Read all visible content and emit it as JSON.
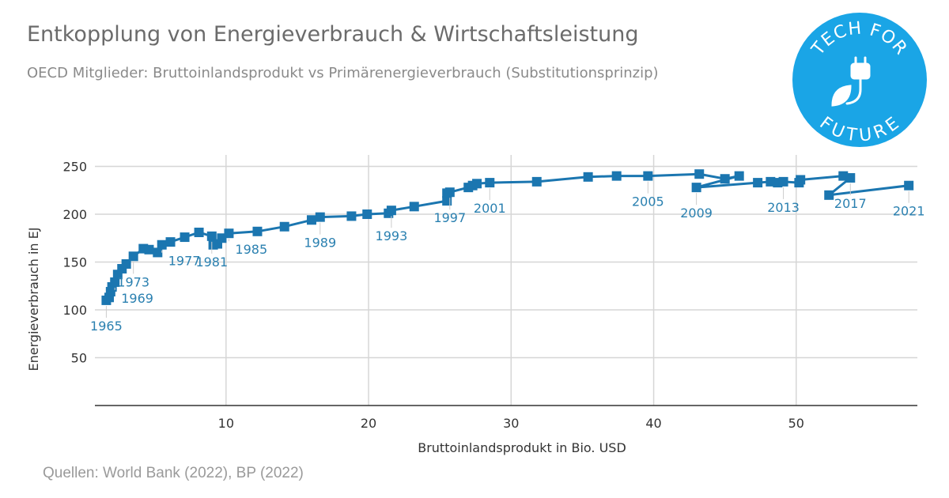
{
  "header": {
    "title": "Entkopplung von Energieverbrauch & Wirtschaftsleistung",
    "subtitle": "OECD Mitglieder: Bruttoinlandsprodukt vs Primärenergieverbrauch (Substitutionsprinzip)"
  },
  "logo": {
    "top_text": "TECH FOR",
    "bottom_text": "FUTURE",
    "icon": "plug-leaf-icon",
    "color": "#1aa5e6"
  },
  "source": "Quellen: World Bank (2022), BP (2022)",
  "colors": {
    "series": "#1b76b0",
    "label": "#2a80b0",
    "grid": "#d6d6d6",
    "axis": "#333333"
  },
  "chart_data": {
    "type": "scatter",
    "xlabel": "Bruttoinlandsprodukt in Bio. USD",
    "ylabel": "Energieverbrauch in EJ",
    "xlim": [
      0.8,
      58.5
    ],
    "ylim": [
      0,
      262
    ],
    "xticks": [
      10,
      20,
      30,
      40,
      50
    ],
    "yticks": [
      50,
      100,
      150,
      200,
      250
    ],
    "grid": true,
    "connected": true,
    "series": [
      {
        "points": [
          {
            "year": "1965",
            "x": 1.6,
            "y": 110
          },
          {
            "x": 1.8,
            "y": 113
          },
          {
            "x": 1.9,
            "y": 119
          },
          {
            "x": 2.0,
            "y": 124
          },
          {
            "year": "1969",
            "x": 2.2,
            "y": 129
          },
          {
            "x": 2.4,
            "y": 137
          },
          {
            "x": 2.7,
            "y": 143
          },
          {
            "x": 3.0,
            "y": 148
          },
          {
            "year": "1973",
            "x": 3.5,
            "y": 156
          },
          {
            "x": 4.2,
            "y": 164
          },
          {
            "x": 4.6,
            "y": 163
          },
          {
            "x": 5.2,
            "y": 160
          },
          {
            "year": "1977",
            "x": 5.5,
            "y": 168
          },
          {
            "x": 6.1,
            "y": 171
          },
          {
            "x": 7.1,
            "y": 176
          },
          {
            "x": 8.1,
            "y": 181
          },
          {
            "year": "1981",
            "x": 9.0,
            "y": 177
          },
          {
            "x": 9.1,
            "y": 168
          },
          {
            "x": 9.4,
            "y": 169
          },
          {
            "x": 9.7,
            "y": 175
          },
          {
            "year": "1985",
            "x": 10.2,
            "y": 180
          },
          {
            "x": 12.2,
            "y": 182
          },
          {
            "x": 14.1,
            "y": 187
          },
          {
            "x": 16.0,
            "y": 194
          },
          {
            "year": "1989",
            "x": 16.6,
            "y": 197
          },
          {
            "x": 18.8,
            "y": 198
          },
          {
            "x": 19.9,
            "y": 200
          },
          {
            "x": 21.4,
            "y": 201
          },
          {
            "year": "1993",
            "x": 21.6,
            "y": 204
          },
          {
            "x": 23.2,
            "y": 208
          },
          {
            "x": 25.5,
            "y": 214
          },
          {
            "x": 25.5,
            "y": 222
          },
          {
            "year": "1997",
            "x": 25.7,
            "y": 223
          },
          {
            "x": 27.0,
            "y": 228
          },
          {
            "x": 27.3,
            "y": 230
          },
          {
            "x": 27.6,
            "y": 232
          },
          {
            "year": "2001",
            "x": 28.5,
            "y": 233
          },
          {
            "x": 31.8,
            "y": 234
          },
          {
            "x": 35.4,
            "y": 239
          },
          {
            "x": 37.4,
            "y": 240
          },
          {
            "year": "2005",
            "x": 39.6,
            "y": 240
          },
          {
            "x": 43.2,
            "y": 242
          },
          {
            "x": 45.0,
            "y": 237
          },
          {
            "x": 46.0,
            "y": 240
          },
          {
            "year": "2009",
            "x": 43.0,
            "y": 228
          },
          {
            "x": 47.3,
            "y": 233
          },
          {
            "x": 48.2,
            "y": 234
          },
          {
            "x": 48.7,
            "y": 233
          },
          {
            "year": "2013",
            "x": 49.1,
            "y": 234
          },
          {
            "x": 50.2,
            "y": 233
          },
          {
            "x": 50.3,
            "y": 236
          },
          {
            "x": 53.3,
            "y": 240
          },
          {
            "year": "2017",
            "x": 53.8,
            "y": 238
          },
          {
            "x": 52.3,
            "y": 220
          },
          {
            "year": "2021",
            "x": 57.9,
            "y": 230
          }
        ]
      }
    ],
    "annotations": [
      {
        "text": "1965",
        "x": 1.6,
        "y": 110,
        "position": "below"
      },
      {
        "text": "1969",
        "x": 2.2,
        "y": 129,
        "position": "below-right"
      },
      {
        "text": "1973",
        "x": 3.5,
        "y": 156,
        "position": "below"
      },
      {
        "text": "1977",
        "x": 5.5,
        "y": 168,
        "position": "below-right"
      },
      {
        "text": "1981",
        "x": 9.0,
        "y": 177,
        "position": "below"
      },
      {
        "text": "1985",
        "x": 10.2,
        "y": 180,
        "position": "below-right"
      },
      {
        "text": "1989",
        "x": 16.6,
        "y": 197,
        "position": "below"
      },
      {
        "text": "1993",
        "x": 21.6,
        "y": 204,
        "position": "below"
      },
      {
        "text": "1997",
        "x": 25.7,
        "y": 223,
        "position": "below"
      },
      {
        "text": "2001",
        "x": 28.5,
        "y": 233,
        "position": "below"
      },
      {
        "text": "2005",
        "x": 39.6,
        "y": 240,
        "position": "below"
      },
      {
        "text": "2009",
        "x": 43.0,
        "y": 228,
        "position": "below"
      },
      {
        "text": "2013",
        "x": 49.1,
        "y": 234,
        "position": "below"
      },
      {
        "text": "2017",
        "x": 53.8,
        "y": 238,
        "position": "below"
      },
      {
        "text": "2021",
        "x": 57.9,
        "y": 230,
        "position": "below"
      }
    ]
  }
}
